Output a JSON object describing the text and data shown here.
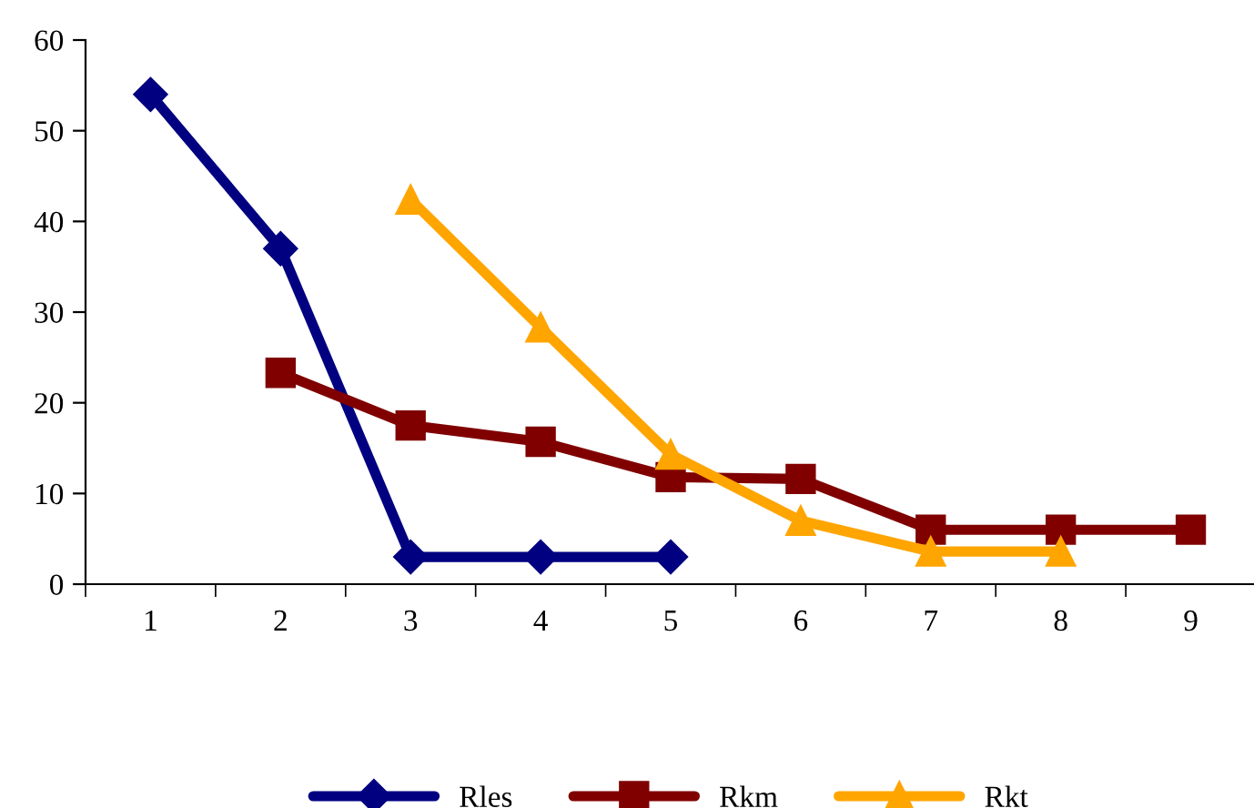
{
  "chart_data": {
    "type": "line",
    "categories": [
      "1",
      "2",
      "3",
      "4",
      "5",
      "6",
      "7",
      "8",
      "9"
    ],
    "series": [
      {
        "name": "Rles",
        "color": "#000080",
        "marker": "diamond",
        "values": [
          54,
          37,
          3,
          3,
          3,
          null,
          null,
          null,
          null
        ]
      },
      {
        "name": "Rkm",
        "color": "#800000",
        "marker": "square",
        "values": [
          null,
          23.3,
          17.5,
          15.7,
          11.8,
          11.6,
          6,
          6,
          6
        ]
      },
      {
        "name": "Rkt",
        "color": "#ffa500",
        "marker": "triangle",
        "values": [
          null,
          null,
          42.4,
          28.3,
          14.3,
          7,
          3.6,
          3.6,
          null
        ]
      }
    ],
    "ylim": [
      0,
      60
    ],
    "yticks": [
      0,
      10,
      20,
      30,
      40,
      50,
      60
    ],
    "grid": false,
    "legend": "bottom",
    "line_style": "solid"
  }
}
